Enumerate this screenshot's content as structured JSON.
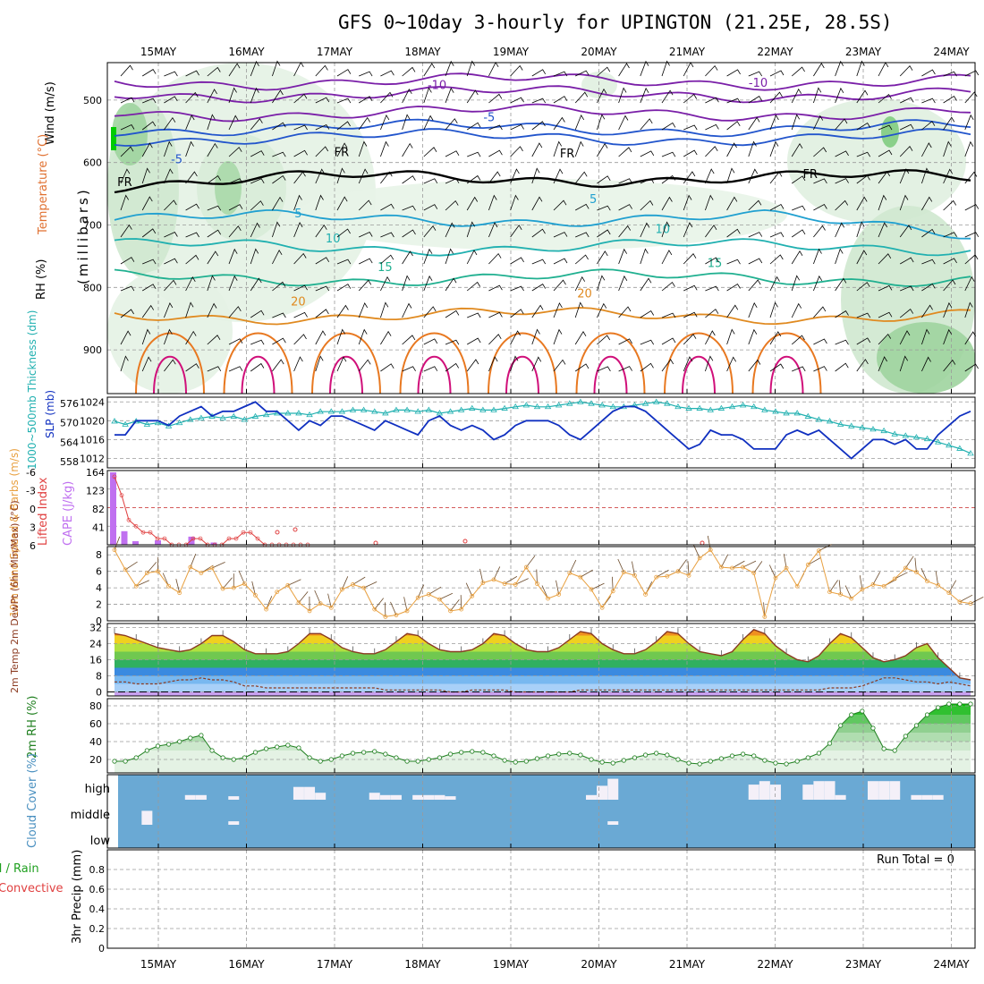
{
  "title": "GFS 0~10day 3-hourly for UPINGTON (21.25E, 28.5S)",
  "dates": [
    "15MAY",
    "16MAY",
    "17MAY",
    "18MAY",
    "19MAY",
    "20MAY",
    "21MAY",
    "22MAY",
    "23MAY",
    "24MAY"
  ],
  "colors": {
    "temp_contour_neg": "#7a1fa8",
    "temp_contour_mid": "#2255cc",
    "temp_contour_warm": "#e08a20",
    "temp_contour_hot": "#d0107a",
    "rh_fill": "#6cc46c",
    "slp": "#1030c0",
    "thickness": "#20b0b0",
    "cape": "#c070f0",
    "lifted_index": "#e04040",
    "wind10m": "#e8a040",
    "temp2m_line": "#8b3a20",
    "rh2m": "#208020",
    "cloud": "#6aa9d4"
  },
  "chart_data": [
    {
      "id": "upper",
      "type": "heatmap",
      "ylabel": "(millibars)",
      "legend_temperature": "Temperature (°C)",
      "legend_wind": "Wind (m/s)",
      "legend_rh": "RH (%)",
      "y_ticks": [
        "500",
        "600",
        "700",
        "800",
        "900"
      ],
      "ylim": [
        970,
        440
      ],
      "contours": [
        {
          "label": "-10",
          "color": "#7a1fa8",
          "levels": [
            {
              "p": 470
            },
            {
              "p": 490
            },
            {
              "p": 520
            }
          ],
          "label_at": [
            {
              "x": 0.38,
              "p": 482
            },
            {
              "x": 0.75,
              "p": 479
            }
          ]
        },
        {
          "label": "-5",
          "color": "#2255cc",
          "levels": [
            {
              "p": 560
            },
            {
              "p": 545
            }
          ],
          "label_at": [
            {
              "x": 0.44,
              "p": 534
            },
            {
              "x": 0.08,
              "p": 601
            }
          ]
        },
        {
          "label": "FR",
          "color": "#000000",
          "levels": [
            {
              "p": 625
            }
          ],
          "label_at": [
            {
              "x": 0.27,
              "p": 590
            },
            {
              "x": 0.53,
              "p": 592
            },
            {
              "x": 0.81,
              "p": 625
            },
            {
              "x": 0.02,
              "p": 638
            }
          ]
        },
        {
          "label": "5",
          "color": "#20a0d0",
          "levels": [
            {
              "p": 690
            }
          ],
          "label_at": [
            {
              "x": 0.22,
              "p": 688
            },
            {
              "x": 0.56,
              "p": 665
            }
          ]
        },
        {
          "label": "10",
          "color": "#20b0b0",
          "levels": [
            {
              "p": 735
            }
          ],
          "label_at": [
            {
              "x": 0.26,
              "p": 728
            },
            {
              "x": 0.64,
              "p": 713
            }
          ]
        },
        {
          "label": "15",
          "color": "#20b090",
          "levels": [
            {
              "p": 785
            }
          ],
          "label_at": [
            {
              "x": 0.32,
              "p": 774
            },
            {
              "x": 0.7,
              "p": 767
            }
          ]
        },
        {
          "label": "20",
          "color": "#e08a20",
          "levels": [
            {
              "p": 845
            }
          ],
          "label_at": [
            {
              "x": 0.22,
              "p": 829
            },
            {
              "x": 0.55,
              "p": 816
            }
          ]
        }
      ]
    },
    {
      "id": "slp_thickness",
      "type": "line",
      "ylabel_left": "1000~500mb Thickness (dm)",
      "ylabel_right": "SLP (mb)",
      "y_ticks_left": [
        "558",
        "564",
        "570",
        "576"
      ],
      "y_ticks_right": [
        "1012",
        "1016",
        "1020",
        "1024"
      ],
      "ylim_slp": [
        1010,
        1025
      ],
      "x": [
        0,
        1,
        2,
        3,
        4,
        5,
        6,
        7,
        8,
        9,
        10,
        11,
        12,
        13,
        14,
        15,
        16,
        17,
        18,
        19,
        20,
        21,
        22,
        23,
        24,
        25,
        26,
        27,
        28,
        29,
        30,
        31,
        32,
        33,
        34,
        35,
        36,
        37,
        38,
        39,
        40,
        41,
        42,
        43,
        44,
        45,
        46,
        47,
        48,
        49,
        50,
        51,
        52,
        53,
        54,
        55,
        56,
        57,
        58,
        59,
        60,
        61,
        62,
        63,
        64,
        65,
        66,
        67,
        68,
        69,
        70,
        71,
        72,
        73,
        74,
        75,
        76,
        77,
        78,
        79
      ],
      "series": [
        {
          "name": "SLP",
          "values": [
            1017,
            1017,
            1020,
            1020,
            1020,
            1019,
            1021,
            1022,
            1023,
            1021,
            1022,
            1022,
            1023,
            1024,
            1022,
            1022,
            1020,
            1018,
            1020,
            1019,
            1021,
            1021,
            1020,
            1019,
            1018,
            1020,
            1019,
            1018,
            1017,
            1020,
            1021,
            1019,
            1018,
            1019,
            1018,
            1016,
            1017,
            1019,
            1020,
            1020,
            1020,
            1019,
            1017,
            1016,
            1018,
            1020,
            1022,
            1023,
            1023,
            1022,
            1020,
            1018,
            1016,
            1014,
            1015,
            1018,
            1017,
            1017,
            1016,
            1014,
            1014,
            1014,
            1017,
            1018,
            1017,
            1018,
            1016,
            1014,
            1012,
            1014,
            1016,
            1016,
            1015,
            1016,
            1014,
            1014,
            1017,
            1019,
            1021,
            1022
          ]
        },
        {
          "name": "Thickness",
          "values": [
            570.5,
            569.5,
            570.5,
            569.5,
            570,
            569,
            570,
            571,
            571.5,
            572,
            571.5,
            572,
            571,
            572,
            572.5,
            573,
            573,
            573,
            572.5,
            573.5,
            573.5,
            573.5,
            574,
            574,
            573.5,
            573,
            574,
            574,
            573.5,
            574,
            573,
            573.5,
            574,
            574.5,
            574,
            574,
            574.5,
            575,
            575.5,
            575,
            575,
            575.5,
            576,
            576.5,
            576,
            575.5,
            575,
            575,
            575.5,
            576,
            576.5,
            576,
            575,
            574.5,
            574.5,
            574,
            574.5,
            575,
            575.5,
            575,
            574,
            573.5,
            573,
            573,
            572,
            571,
            570.5,
            569.5,
            569,
            568.5,
            568,
            567.5,
            566.5,
            566,
            565.5,
            565,
            564,
            563,
            562,
            560.5
          ]
        }
      ]
    },
    {
      "id": "cape_li",
      "type": "bar",
      "ylabel_left": "Lifted Index",
      "ylabel_right": "CAPE (J/kg)",
      "y_ticks_li": [
        "6",
        "3",
        "0",
        "-3",
        "-6"
      ],
      "y_ticks_cape": [
        "164",
        "123",
        "82",
        "41",
        ""
      ],
      "cape_x": [
        0,
        1,
        2,
        3,
        4,
        5,
        6,
        7,
        8,
        9
      ],
      "cape_values": [
        160,
        30,
        8,
        0,
        10,
        0,
        0,
        18,
        0,
        5
      ],
      "li_values": [
        -5,
        -2,
        2,
        3,
        4,
        4,
        5,
        5,
        6,
        6,
        6,
        5,
        5,
        6,
        6,
        6,
        5,
        5,
        4,
        4,
        5,
        6,
        6,
        6,
        6,
        6,
        6,
        6
      ]
    },
    {
      "id": "wind10m",
      "type": "line",
      "ylabel": "10m Wind Speed & Barbs (m/s)",
      "y_ticks": [
        "0",
        "2",
        "4",
        "6",
        "8"
      ],
      "ylim": [
        0,
        9
      ],
      "values": [
        8.6,
        6.2,
        4.2,
        5.8,
        6.0,
        4.2,
        3.4,
        6.5,
        5.8,
        6.4,
        3.9,
        4.0,
        4.5,
        3.1,
        1.4,
        3.5,
        4.3,
        2.2,
        1.2,
        2.1,
        1.6,
        3.8,
        4.4,
        4.0,
        1.4,
        0.5,
        0.7,
        1.2,
        2.8,
        3.2,
        2.6,
        1.2,
        1.4,
        3.0,
        4.6,
        5.0,
        4.5,
        4.4,
        6.5,
        4.5,
        2.7,
        3.2,
        5.8,
        5.3,
        3.8,
        1.6,
        3.6,
        5.9,
        5.5,
        3.2,
        5.3,
        5.4,
        6.0,
        5.5,
        7.6,
        8.6,
        6.5,
        6.4,
        6.5,
        5.8,
        0.5,
        5.2,
        6.4,
        4.2,
        6.8,
        8.5,
        3.5,
        3.2,
        2.7,
        3.8,
        4.4,
        4.2,
        5.1,
        6.4,
        5.9,
        4.8,
        4.3,
        3.4,
        2.3,
        2.1
      ]
    },
    {
      "id": "temp2m",
      "type": "area",
      "ylabel": "2m Temp 2m DewPt (6hr Min/Max) (°C)",
      "y_ticks": [
        "0",
        "8",
        "16",
        "24",
        "32"
      ],
      "ylim": [
        -2,
        34
      ],
      "temp": [
        29,
        28,
        26,
        24,
        22,
        21,
        20,
        21,
        24,
        28,
        28,
        25,
        21,
        19,
        19,
        19,
        20,
        24,
        29,
        29,
        26,
        22,
        20,
        19,
        19,
        21,
        25,
        29,
        28,
        24,
        21,
        20,
        20,
        21,
        24,
        29,
        28,
        24,
        21,
        20,
        20,
        22,
        26,
        30,
        29,
        24,
        21,
        19,
        19,
        21,
        25,
        30,
        29,
        24,
        20,
        19,
        18,
        20,
        26,
        31,
        29,
        23,
        19,
        16,
        15,
        18,
        24,
        29,
        27,
        22,
        17,
        15,
        16,
        18,
        22,
        24,
        17,
        12,
        7,
        6
      ],
      "dewpt": [
        5,
        5,
        4,
        4,
        4,
        5,
        6,
        6,
        7,
        6,
        6,
        5,
        3,
        3,
        2,
        2,
        2,
        2,
        2,
        2,
        2,
        2,
        2,
        2,
        2,
        1,
        1,
        1,
        1,
        1,
        1,
        0,
        0,
        1,
        1,
        1,
        1,
        0,
        0,
        0,
        0,
        0,
        0,
        1,
        1,
        1,
        1,
        1,
        1,
        1,
        1,
        1,
        1,
        1,
        1,
        1,
        1,
        1,
        1,
        1,
        1,
        1,
        1,
        1,
        1,
        1,
        2,
        2,
        2,
        3,
        5,
        7,
        7,
        6,
        5,
        5,
        4,
        5,
        4,
        3
      ]
    },
    {
      "id": "rh2m",
      "type": "area",
      "ylabel": "2m RH (%)",
      "y_ticks": [
        "20",
        "40",
        "60",
        "80"
      ],
      "ylim": [
        5,
        88
      ],
      "values": [
        18,
        18,
        22,
        30,
        35,
        37,
        40,
        44,
        47,
        30,
        22,
        20,
        22,
        28,
        32,
        34,
        36,
        33,
        22,
        18,
        20,
        24,
        27,
        28,
        29,
        26,
        22,
        18,
        18,
        20,
        22,
        26,
        28,
        29,
        28,
        24,
        19,
        17,
        18,
        21,
        24,
        26,
        27,
        25,
        20,
        17,
        16,
        19,
        22,
        25,
        27,
        25,
        20,
        16,
        15,
        18,
        21,
        24,
        26,
        24,
        19,
        16,
        15,
        18,
        22,
        27,
        38,
        58,
        70,
        74,
        55,
        32,
        30,
        46,
        58,
        70,
        78,
        82,
        82,
        82
      ]
    },
    {
      "id": "cloud",
      "type": "bar",
      "ylabel": "Cloud Cover (%)",
      "levels": [
        "high",
        "middle",
        "low"
      ],
      "high": [
        0,
        0,
        0,
        0,
        0,
        0,
        0,
        20,
        20,
        0,
        0,
        15,
        0,
        0,
        0,
        0,
        0,
        55,
        55,
        30,
        0,
        0,
        0,
        0,
        30,
        20,
        20,
        0,
        20,
        20,
        20,
        15,
        0,
        0,
        0,
        0,
        0,
        0,
        0,
        0,
        0,
        0,
        0,
        0,
        20,
        60,
        90,
        0,
        0,
        0,
        0,
        0,
        0,
        0,
        0,
        0,
        0,
        0,
        0,
        65,
        80,
        65,
        0,
        0,
        65,
        80,
        80,
        20,
        0,
        0,
        80,
        80,
        80,
        0,
        20,
        20,
        20,
        0,
        0,
        0
      ],
      "middle": [
        0,
        0,
        0,
        60,
        0,
        0,
        0,
        0,
        0,
        0,
        0,
        15,
        0,
        0,
        0,
        0,
        0,
        0,
        0,
        0,
        0,
        0,
        0,
        0,
        0,
        0,
        0,
        0,
        0,
        0,
        0,
        0,
        0,
        0,
        0,
        0,
        0,
        0,
        0,
        0,
        0,
        0,
        0,
        0,
        0,
        0,
        15,
        0,
        0,
        0,
        0,
        0,
        0,
        0,
        0,
        0,
        0,
        0,
        0,
        0,
        0,
        0,
        0,
        0,
        0,
        0,
        0,
        0,
        0,
        0,
        0,
        0,
        0,
        0,
        0,
        0,
        0,
        0,
        0,
        0
      ],
      "low": [
        0,
        0,
        0,
        0,
        0,
        0,
        0,
        0,
        0,
        0,
        0,
        0,
        0,
        0,
        0,
        0,
        0,
        0,
        0,
        0,
        0,
        0,
        0,
        0,
        0,
        0,
        0,
        0,
        0,
        0,
        0,
        0,
        0,
        0,
        0,
        0,
        0,
        0,
        0,
        0,
        0,
        0,
        0,
        0,
        0,
        0,
        0,
        0,
        0,
        0,
        0,
        0,
        0,
        0,
        0,
        0,
        0,
        0,
        0,
        0,
        0,
        0,
        0,
        0,
        0,
        0,
        0,
        0,
        0,
        0,
        0,
        0,
        0,
        0,
        0,
        0,
        0,
        0,
        0,
        0
      ]
    },
    {
      "id": "precip",
      "type": "bar",
      "ylabel": "3hr Precip (mm)",
      "legend_total": "Total / Rain",
      "legend_conv": "Convective",
      "annotation": "Run Total = 0",
      "y_ticks": [
        "0",
        "0.2",
        "0.4",
        "0.6",
        "0.8"
      ],
      "ylim": [
        0,
        1
      ],
      "values": []
    }
  ]
}
